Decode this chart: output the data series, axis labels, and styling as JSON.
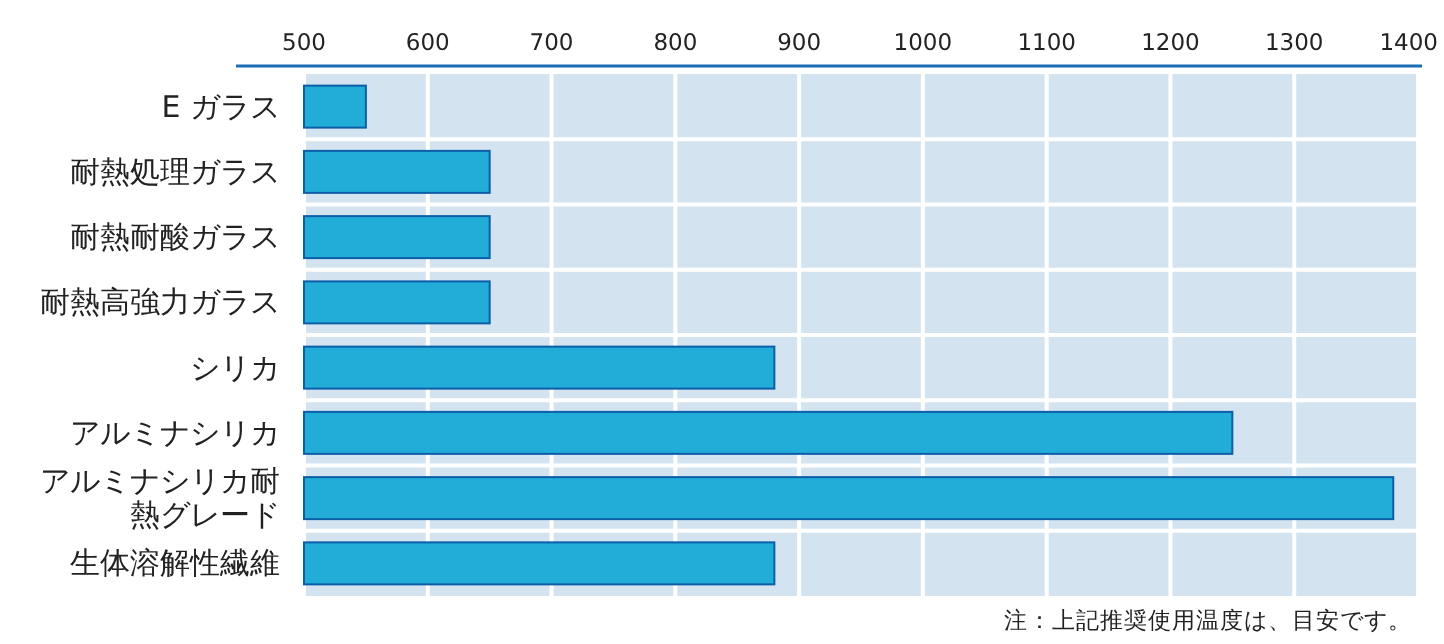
{
  "chart_data": {
    "type": "bar",
    "orientation": "horizontal",
    "categories": [
      "E ガラス",
      "耐熱処理ガラス",
      "耐熱耐酸ガラス",
      "耐熱高強力ガラス",
      "シリカ",
      "アルミナシリカ",
      "アルミナシリカ耐熱グレード",
      "生体溶解性繊維"
    ],
    "values": [
      550,
      650,
      650,
      650,
      880,
      1250,
      1380,
      880
    ],
    "color": "#22acd8",
    "xlim": [
      500,
      1400
    ],
    "xticks": [
      500,
      600,
      700,
      800,
      900,
      1000,
      1100,
      1200,
      1300,
      1400
    ],
    "grid": "x",
    "annotations": [
      "注：上記推奨使用温度は、目安です。"
    ]
  }
}
